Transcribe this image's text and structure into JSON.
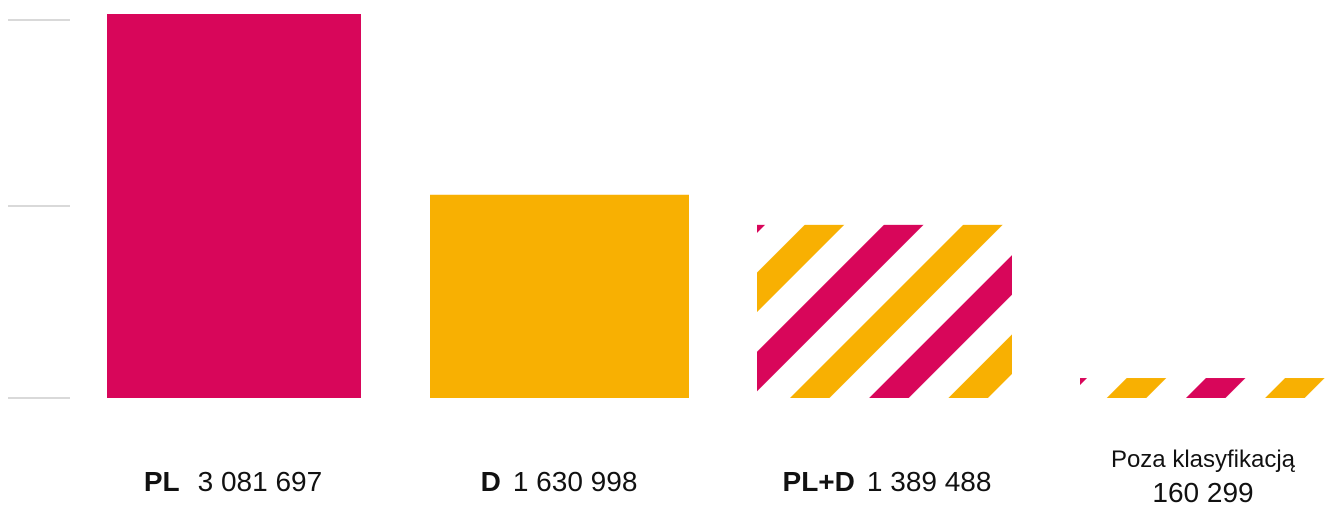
{
  "chart_data": {
    "type": "bar",
    "categories": [
      {
        "code": "PL",
        "value_text": "3 081 697"
      },
      {
        "code": "D",
        "value_text": "1 630 998"
      },
      {
        "code": "PL+D",
        "value_text": "1 389 488"
      },
      {
        "code": "",
        "name": "Poza klasyfikacją",
        "value_text": "160 299"
      }
    ],
    "values": [
      3081697,
      1630998,
      1389488,
      160299
    ],
    "styles": [
      "solid-pink",
      "solid-yellow",
      "stripes",
      "stripes"
    ],
    "ylim": [
      0,
      3081697
    ],
    "grid": true,
    "colors": {
      "pink": "#D8065A",
      "yellow": "#F8B002",
      "grid": "#D9D9D9"
    }
  }
}
